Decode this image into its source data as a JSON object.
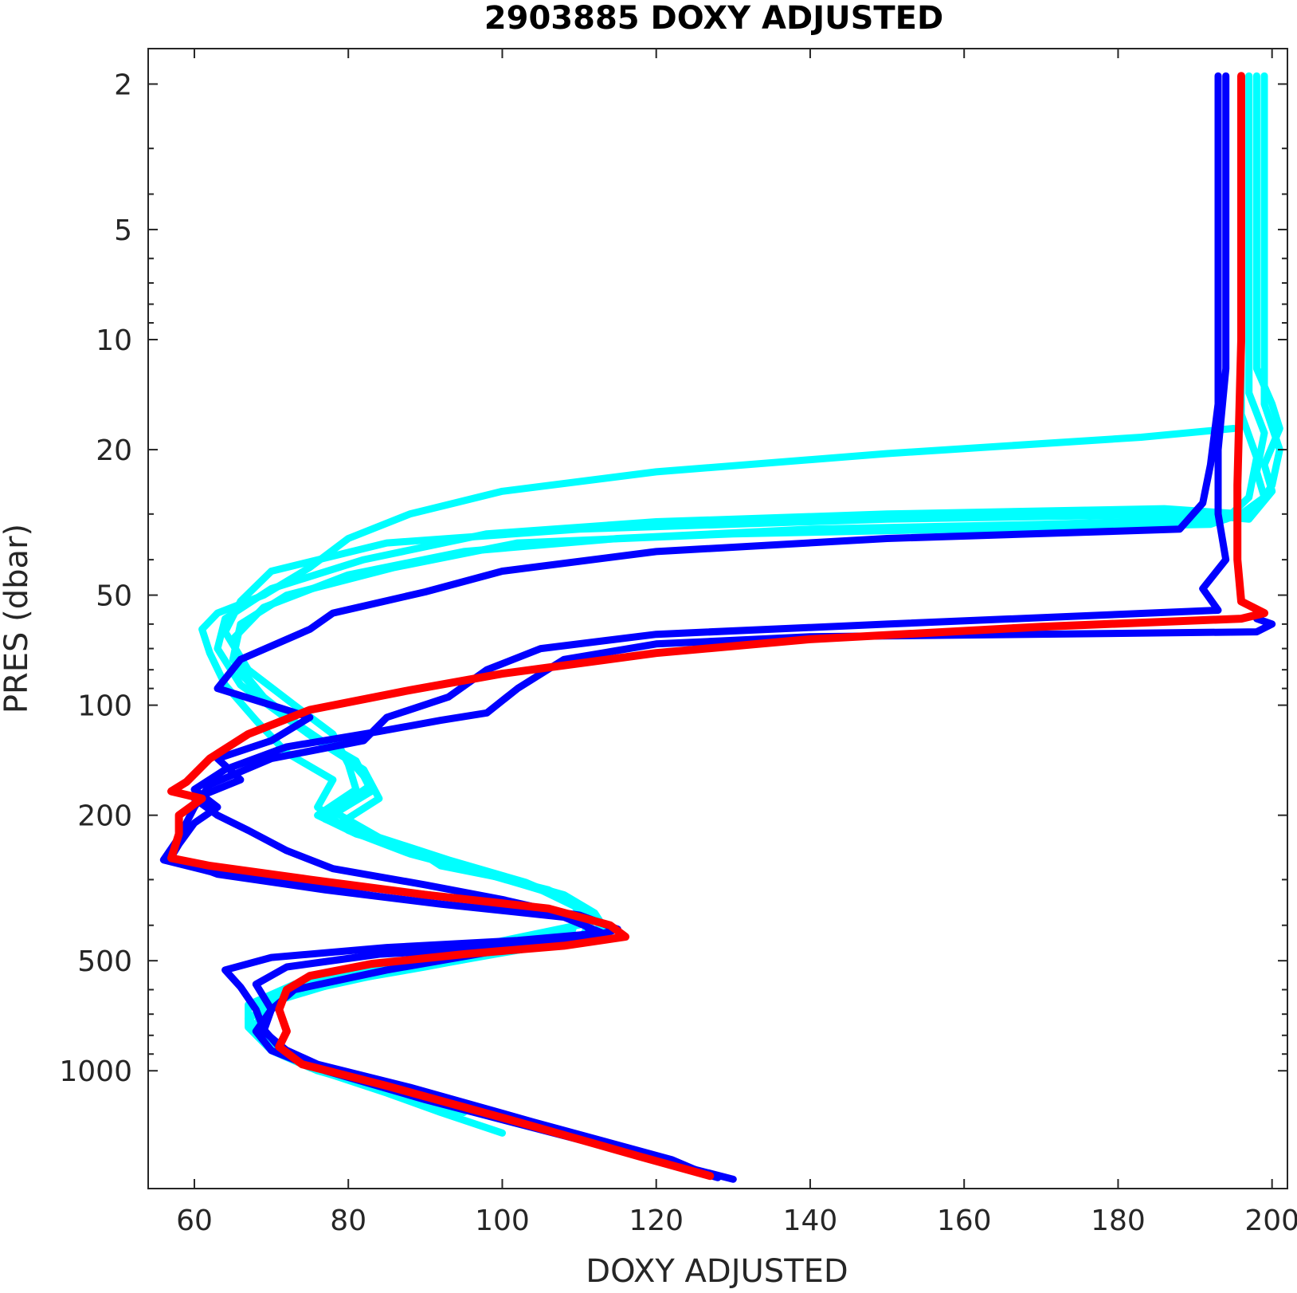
{
  "chart_data": {
    "type": "line",
    "title": "2903885  DOXY ADJUSTED",
    "xlabel": "DOXY ADJUSTED",
    "ylabel": "PRES (dbar)",
    "xlim": [
      54,
      202
    ],
    "ylim": [
      1.6,
      2100
    ],
    "y_scale": "log",
    "y_reversed": true,
    "grid": false,
    "x_ticks": [
      60,
      80,
      100,
      120,
      140,
      160,
      180,
      200
    ],
    "x_tick_labels": [
      "60",
      "80",
      "100",
      "120",
      "140",
      "160",
      "180",
      "200"
    ],
    "y_ticks_major": [
      2,
      5,
      10,
      20,
      50,
      100,
      200,
      500,
      1000
    ],
    "y_tick_labels": [
      "2",
      "5",
      "10",
      "20",
      "50",
      "100",
      "200",
      "500",
      "1000"
    ],
    "y_ticks_minor": [
      3,
      4,
      6,
      7,
      8,
      9,
      30,
      40,
      60,
      70,
      80,
      90,
      300,
      400,
      600,
      700,
      800,
      900
    ],
    "colors": {
      "older_profiles": "#00ffff",
      "recent_profiles": "#0000ff",
      "latest_profile": "#ff0000"
    },
    "series": [
      {
        "color": "#00ffff",
        "points": [
          [
            198,
            1.9
          ],
          [
            198,
            12
          ],
          [
            200,
            15
          ],
          [
            201,
            17.5
          ],
          [
            199,
            22
          ],
          [
            200,
            26
          ],
          [
            197,
            31
          ],
          [
            190,
            30
          ],
          [
            150,
            31
          ],
          [
            110,
            33
          ],
          [
            85,
            36
          ],
          [
            70,
            43
          ],
          [
            66,
            52
          ],
          [
            64,
            63
          ],
          [
            67,
            80
          ],
          [
            73,
            100
          ],
          [
            78,
            120
          ],
          [
            80,
            145
          ],
          [
            81,
            170
          ],
          [
            76,
            200
          ],
          [
            81,
            225
          ],
          [
            89,
            250
          ],
          [
            92,
            275
          ],
          [
            101,
            300
          ],
          [
            108,
            330
          ],
          [
            112,
            370
          ],
          [
            114,
            430
          ],
          [
            101,
            470
          ],
          [
            90,
            520
          ],
          [
            77,
            580
          ],
          [
            69,
            660
          ],
          [
            68,
            760
          ],
          [
            70,
            880
          ],
          [
            75,
            980
          ],
          [
            85,
            1150
          ],
          [
            92,
            1300
          ],
          [
            100,
            1480
          ]
        ]
      },
      {
        "color": "#00ffff",
        "points": [
          [
            197,
            1.9
          ],
          [
            197,
            14
          ],
          [
            199,
            18
          ],
          [
            198,
            23
          ],
          [
            199,
            27
          ],
          [
            196,
            30
          ],
          [
            186,
            29
          ],
          [
            150,
            30
          ],
          [
            120,
            31.5
          ],
          [
            98,
            34
          ],
          [
            82,
            40
          ],
          [
            70,
            48
          ],
          [
            64,
            58
          ],
          [
            63,
            70
          ],
          [
            66,
            88
          ],
          [
            71,
            105
          ],
          [
            76,
            125
          ],
          [
            82,
            150
          ],
          [
            84,
            180
          ],
          [
            79,
            210
          ],
          [
            87,
            245
          ],
          [
            95,
            280
          ],
          [
            106,
            320
          ],
          [
            111,
            360
          ],
          [
            113,
            410
          ],
          [
            104,
            460
          ],
          [
            92,
            510
          ],
          [
            79,
            570
          ],
          [
            70,
            650
          ],
          [
            68,
            750
          ],
          [
            71,
            870
          ],
          [
            74,
            960
          ],
          [
            84,
            1120
          ],
          [
            95,
            1300
          ]
        ]
      },
      {
        "color": "#00ffff",
        "points": [
          [
            199,
            1.9
          ],
          [
            199,
            15
          ],
          [
            201,
            20
          ],
          [
            200,
            25
          ],
          [
            198,
            29
          ],
          [
            192,
            32
          ],
          [
            160,
            33
          ],
          [
            130,
            34
          ],
          [
            102,
            36
          ],
          [
            86,
            42
          ],
          [
            72,
            50
          ],
          [
            66,
            60
          ],
          [
            65,
            75
          ],
          [
            69,
            95
          ],
          [
            74,
            115
          ],
          [
            80,
            140
          ],
          [
            83,
            165
          ],
          [
            78,
            195
          ],
          [
            84,
            230
          ],
          [
            93,
            265
          ],
          [
            103,
            305
          ],
          [
            109,
            345
          ],
          [
            111,
            395
          ],
          [
            98,
            450
          ],
          [
            86,
            505
          ],
          [
            75,
            575
          ],
          [
            68,
            670
          ],
          [
            69,
            780
          ],
          [
            72,
            900
          ],
          [
            78,
            1020
          ],
          [
            90,
            1200
          ]
        ]
      },
      {
        "color": "#00ffff",
        "points": [
          [
            196,
            1.9
          ],
          [
            196,
            16
          ],
          [
            198,
            21
          ],
          [
            197,
            27
          ],
          [
            194,
            31
          ],
          [
            170,
            32
          ],
          [
            140,
            33
          ],
          [
            115,
            35
          ],
          [
            95,
            38
          ],
          [
            80,
            44
          ],
          [
            69,
            54
          ],
          [
            65,
            66
          ],
          [
            66,
            82
          ],
          [
            70,
            100
          ],
          [
            75,
            120
          ],
          [
            81,
            142
          ],
          [
            83,
            172
          ],
          [
            77,
            205
          ],
          [
            85,
            240
          ],
          [
            97,
            285
          ],
          [
            107,
            330
          ],
          [
            112,
            380
          ],
          [
            110,
            440
          ],
          [
            96,
            490
          ],
          [
            84,
            545
          ],
          [
            72,
            620
          ],
          [
            67,
            720
          ],
          [
            70,
            840
          ],
          [
            74,
            950
          ],
          [
            82,
            1080
          ],
          [
            94,
            1250
          ]
        ]
      },
      {
        "color": "#00ffff",
        "points": [
          [
            195,
            17.5
          ],
          [
            183,
            18.5
          ],
          [
            150,
            20.5
          ],
          [
            120,
            23
          ],
          [
            100,
            26
          ],
          [
            88,
            30
          ],
          [
            80,
            35
          ],
          [
            75,
            42
          ],
          [
            69,
            50
          ],
          [
            63,
            56
          ],
          [
            61,
            62
          ],
          [
            62,
            72
          ],
          [
            64,
            88
          ],
          [
            68,
            110
          ],
          [
            72,
            135
          ],
          [
            78,
            160
          ],
          [
            76,
            190
          ],
          [
            80,
            220
          ],
          [
            88,
            255
          ],
          [
            98,
            290
          ],
          [
            105,
            320
          ],
          [
            110,
            360
          ],
          [
            109,
            420
          ],
          [
            95,
            470
          ],
          [
            83,
            520
          ],
          [
            73,
            580
          ],
          [
            67,
            660
          ],
          [
            67,
            760
          ],
          [
            70,
            880
          ],
          [
            76,
            1000
          ],
          [
            86,
            1150
          ],
          [
            98,
            1300
          ],
          [
            105,
            1400
          ]
        ]
      },
      {
        "color": "#0000ff",
        "points": [
          [
            193,
            1.9
          ],
          [
            193,
            15
          ],
          [
            192,
            22
          ],
          [
            191,
            28
          ],
          [
            188,
            33
          ],
          [
            150,
            35
          ],
          [
            120,
            38
          ],
          [
            100,
            43
          ],
          [
            90,
            49
          ],
          [
            78,
            56
          ],
          [
            75,
            62
          ],
          [
            66,
            75
          ],
          [
            63,
            90
          ],
          [
            70,
            100
          ],
          [
            75,
            108
          ],
          [
            70,
            125
          ],
          [
            63,
            140
          ],
          [
            66,
            160
          ],
          [
            60,
            180
          ],
          [
            63,
            200
          ],
          [
            67,
            220
          ],
          [
            72,
            250
          ],
          [
            78,
            280
          ],
          [
            90,
            310
          ],
          [
            100,
            340
          ],
          [
            110,
            380
          ],
          [
            112,
            430
          ],
          [
            98,
            475
          ],
          [
            85,
            530
          ],
          [
            73,
            600
          ],
          [
            70,
            680
          ],
          [
            68,
            780
          ],
          [
            70,
            880
          ],
          [
            75,
            970
          ],
          [
            86,
            1120
          ],
          [
            102,
            1350
          ],
          [
            118,
            1700
          ],
          [
            128,
            1960
          ]
        ]
      },
      {
        "color": "#0000ff",
        "points": [
          [
            194,
            1.9
          ],
          [
            194,
            12
          ],
          [
            193,
            20
          ],
          [
            193,
            30
          ],
          [
            194,
            40
          ],
          [
            191,
            48
          ],
          [
            193,
            55
          ],
          [
            150,
            60
          ],
          [
            120,
            64
          ],
          [
            105,
            70
          ],
          [
            98,
            80
          ],
          [
            93,
            95
          ],
          [
            85,
            108
          ],
          [
            82,
            125
          ],
          [
            70,
            140
          ],
          [
            62,
            165
          ],
          [
            60,
            190
          ],
          [
            58,
            230
          ],
          [
            56,
            265
          ],
          [
            62,
            285
          ],
          [
            72,
            300
          ],
          [
            85,
            320
          ],
          [
            98,
            345
          ],
          [
            110,
            375
          ],
          [
            115,
            410
          ],
          [
            110,
            440
          ],
          [
            100,
            460
          ],
          [
            84,
            480
          ],
          [
            72,
            520
          ],
          [
            68,
            580
          ],
          [
            70,
            680
          ],
          [
            69,
            780
          ],
          [
            72,
            880
          ],
          [
            77,
            1000
          ],
          [
            90,
            1200
          ],
          [
            105,
            1450
          ],
          [
            120,
            1750
          ],
          [
            130,
            1980
          ]
        ]
      },
      {
        "color": "#0000ff",
        "points": [
          [
            198,
            58
          ],
          [
            200,
            60
          ],
          [
            198,
            63
          ],
          [
            140,
            65
          ],
          [
            120,
            68
          ],
          [
            108,
            75
          ],
          [
            102,
            90
          ],
          [
            98,
            105
          ],
          [
            92,
            110
          ],
          [
            84,
            118
          ],
          [
            72,
            130
          ],
          [
            64,
            150
          ],
          [
            60,
            170
          ],
          [
            63,
            190
          ],
          [
            60,
            210
          ],
          [
            58,
            240
          ],
          [
            57,
            260
          ],
          [
            63,
            290
          ],
          [
            77,
            320
          ],
          [
            92,
            350
          ],
          [
            108,
            380
          ],
          [
            113,
            420
          ],
          [
            102,
            440
          ],
          [
            85,
            460
          ],
          [
            70,
            490
          ],
          [
            64,
            530
          ],
          [
            66,
            590
          ],
          [
            68,
            680
          ],
          [
            69,
            770
          ],
          [
            71,
            860
          ],
          [
            76,
            960
          ],
          [
            88,
            1110
          ],
          [
            104,
            1380
          ],
          [
            122,
            1750
          ],
          [
            127,
            1940
          ]
        ]
      },
      {
        "color": "#ff0000",
        "points": [
          [
            196,
            1.9
          ],
          [
            196,
            10
          ],
          [
            195.5,
            25
          ],
          [
            195.5,
            40
          ],
          [
            196,
            52
          ],
          [
            199,
            56
          ],
          [
            196,
            58
          ],
          [
            170,
            61
          ],
          [
            140,
            66
          ],
          [
            120,
            72
          ],
          [
            100,
            82
          ],
          [
            88,
            91
          ],
          [
            75,
            103
          ],
          [
            67,
            120
          ],
          [
            62,
            140
          ],
          [
            59,
            162
          ],
          [
            57,
            172
          ],
          [
            61,
            180
          ],
          [
            58,
            200
          ],
          [
            58,
            225
          ],
          [
            57,
            262
          ],
          [
            62,
            275
          ],
          [
            75,
            300
          ],
          [
            90,
            330
          ],
          [
            106,
            360
          ],
          [
            114,
            400
          ],
          [
            116,
            430
          ],
          [
            108,
            455
          ],
          [
            95,
            480
          ],
          [
            83,
            510
          ],
          [
            75,
            550
          ],
          [
            72,
            600
          ],
          [
            71,
            680
          ],
          [
            72,
            780
          ],
          [
            71,
            860
          ],
          [
            74,
            960
          ],
          [
            85,
            1100
          ],
          [
            102,
            1380
          ],
          [
            118,
            1720
          ],
          [
            127,
            1940
          ]
        ]
      }
    ]
  }
}
